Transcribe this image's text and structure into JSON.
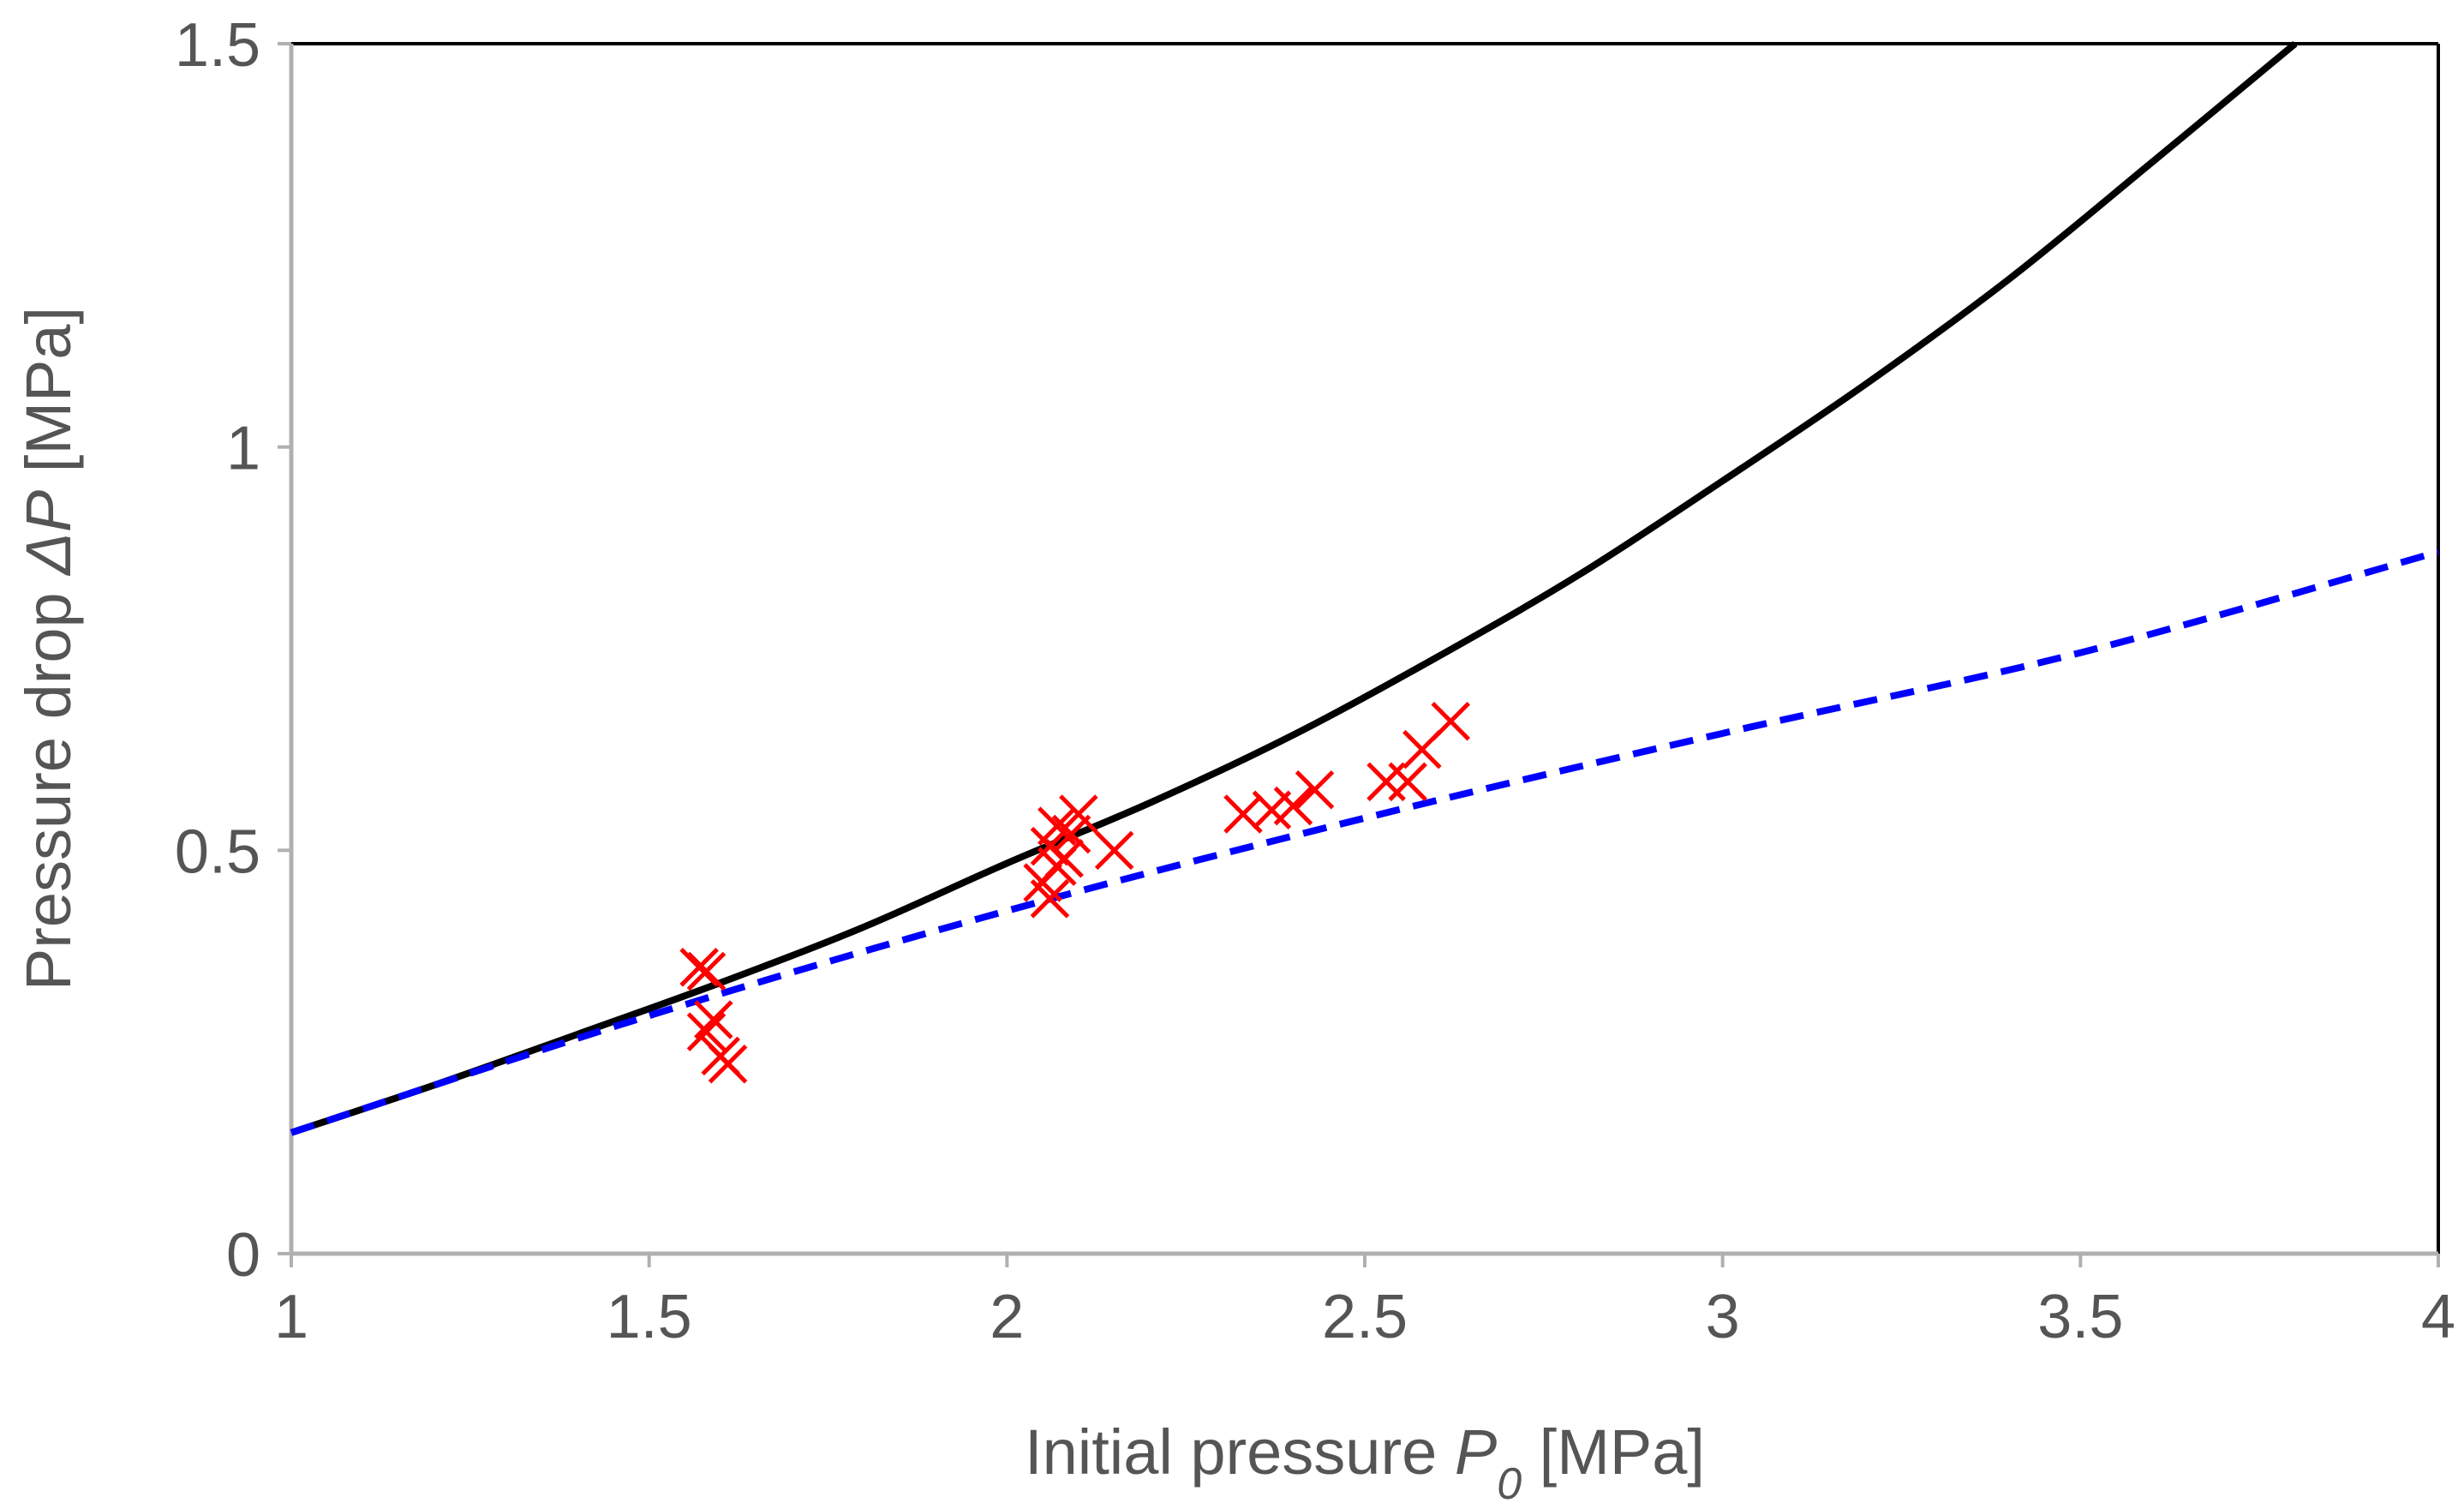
{
  "chart_data": {
    "type": "scatter",
    "title": "",
    "xlabel": {
      "prefix": "Initial pressure ",
      "symbol": "P",
      "subscript": "0",
      "suffix": " [MPa]"
    },
    "ylabel": {
      "prefix": "Pressure drop ",
      "symbol": "ΔP",
      "suffix": " [MPa]"
    },
    "xlim": [
      1,
      4
    ],
    "ylim": [
      0,
      1.5
    ],
    "xticks": [
      1,
      1.5,
      2,
      2.5,
      3,
      3.5,
      4
    ],
    "xtick_labels": [
      "1",
      "1.5",
      "2",
      "2.5",
      "3",
      "3.5",
      "4"
    ],
    "yticks": [
      0,
      0.5,
      1,
      1.5
    ],
    "ytick_labels": [
      "0",
      "0.5",
      "1",
      "1.5"
    ],
    "grid": false,
    "legend": "none",
    "series": [
      {
        "name": "black solid curve",
        "kind": "line",
        "style": "solid",
        "color": "#000000",
        "x": [
          1.0,
          1.2,
          1.4,
          1.6,
          1.8,
          2.0,
          2.2,
          2.4,
          2.6,
          2.8,
          3.0,
          3.2,
          3.4,
          3.6,
          3.8
        ],
        "y": [
          0.15,
          0.209,
          0.272,
          0.336,
          0.405,
          0.484,
          0.559,
          0.643,
          0.739,
          0.842,
          0.958,
          1.078,
          1.208,
          1.353,
          1.5
        ]
      },
      {
        "name": "blue dashed curve",
        "kind": "line",
        "style": "dashed",
        "color": "#0000ff",
        "x": [
          1.0,
          1.5,
          2.0,
          2.5,
          3.0,
          3.5,
          4.0
        ],
        "y": [
          0.15,
          0.295,
          0.425,
          0.54,
          0.645,
          0.745,
          0.87
        ]
      },
      {
        "name": "experimental points",
        "kind": "scatter",
        "marker": "x",
        "color": "#ff0000",
        "x": [
          1.57,
          1.58,
          1.58,
          1.59,
          1.6,
          1.61,
          2.05,
          2.06,
          2.06,
          2.07,
          2.07,
          2.08,
          2.09,
          2.1,
          2.15,
          2.33,
          2.37,
          2.4,
          2.43,
          2.53,
          2.56,
          2.58,
          2.62
        ],
        "y": [
          0.355,
          0.35,
          0.275,
          0.29,
          0.245,
          0.235,
          0.46,
          0.44,
          0.505,
          0.48,
          0.53,
          0.49,
          0.52,
          0.545,
          0.5,
          0.545,
          0.55,
          0.555,
          0.575,
          0.585,
          0.585,
          0.625,
          0.66
        ]
      }
    ]
  }
}
